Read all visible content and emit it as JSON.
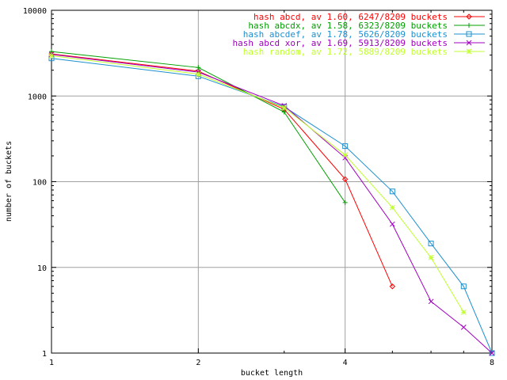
{
  "chart_data": {
    "type": "line",
    "title": "",
    "xlabel": "bucket length",
    "ylabel": "number of buckets",
    "xscale": "log2",
    "yscale": "log10",
    "xlim": [
      1,
      8
    ],
    "ylim": [
      1,
      10000
    ],
    "grid": true,
    "legend_position": "top-right",
    "x_ticks": [
      1,
      2,
      4,
      8
    ],
    "y_ticks": [
      1,
      10,
      100,
      1000,
      10000
    ],
    "series": [
      {
        "name": "hash abcd, av 1.60, 6247/8209 buckets",
        "color": "#ff0000",
        "marker": "diamond",
        "x": [
          1,
          2,
          3,
          4,
          5
        ],
        "y": [
          3100,
          1950,
          700,
          107,
          6
        ]
      },
      {
        "name": "hash abcdx, av 1.58, 6323/8209 buckets",
        "color": "#00a000",
        "marker": "plus",
        "x": [
          1,
          2,
          3,
          4
        ],
        "y": [
          3300,
          2150,
          650,
          57
        ]
      },
      {
        "name": "hash abcdef, av 1.78, 5626/8209 buckets",
        "color": "#1e90d0",
        "marker": "square",
        "x": [
          1,
          2,
          3,
          4,
          5,
          6,
          7,
          8
        ],
        "y": [
          2750,
          1700,
          750,
          260,
          77,
          19,
          6,
          1
        ]
      },
      {
        "name": "hash abcd xor, av 1.69, 5913/8209 buckets",
        "color": "#a000c0",
        "marker": "x",
        "x": [
          1,
          2,
          3,
          4,
          5,
          6,
          7,
          8
        ],
        "y": [
          3050,
          1900,
          770,
          190,
          32,
          4,
          2,
          1
        ]
      },
      {
        "name": "hash random, av 1.72, 5889/8209 buckets",
        "color": "#c0ff30",
        "marker": "star",
        "x": [
          1,
          2,
          3,
          4,
          5,
          6,
          7
        ],
        "y": [
          2950,
          1800,
          730,
          205,
          50,
          13,
          3
        ]
      }
    ]
  }
}
